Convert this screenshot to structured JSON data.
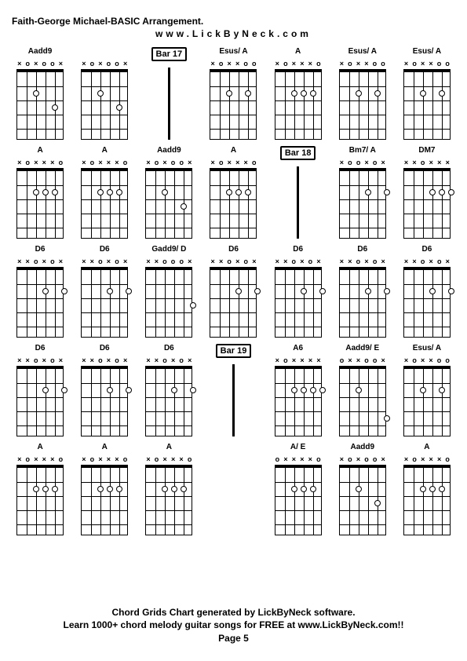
{
  "header": {
    "title": "Faith-George Michael-BASIC Arrangement.",
    "url": "www.LickByNeck.com"
  },
  "footer": {
    "line1": "Chord Grids Chart generated by LickByNeck software.",
    "line2": "Learn 1000+ chord melody guitar songs for FREE at www.LickByNeck.com!!",
    "page": "Page 5"
  },
  "colors": {
    "background": "#ffffff",
    "line": "#000000",
    "text": "#000000"
  },
  "dimensions": {
    "fretboard_width": 60,
    "fretboard_height": 90,
    "frets": 5,
    "strings": 6
  },
  "cells": [
    {
      "type": "chord",
      "label": "Aadd9",
      "markers": [
        "×",
        "o",
        "×",
        "o",
        "o",
        "×"
      ],
      "dots": [
        [
          2,
          1
        ],
        [
          3,
          3
        ]
      ]
    },
    {
      "type": "chord",
      "label": "",
      "markers": [
        "×",
        "o",
        "×",
        "o",
        "o",
        "×"
      ],
      "dots": [
        [
          2,
          1
        ],
        [
          3,
          3
        ]
      ]
    },
    {
      "type": "bar",
      "label": "Bar 17"
    },
    {
      "type": "chord",
      "label": "Esus/ A",
      "markers": [
        "×",
        "o",
        "×",
        "×",
        "o",
        "o"
      ],
      "dots": [
        [
          2,
          1
        ],
        [
          2,
          3
        ]
      ]
    },
    {
      "type": "chord",
      "label": "A",
      "markers": [
        "×",
        "o",
        "×",
        "×",
        "×",
        "o"
      ],
      "dots": [
        [
          2,
          1
        ],
        [
          2,
          2
        ],
        [
          2,
          3
        ]
      ]
    },
    {
      "type": "chord",
      "label": "Esus/ A",
      "markers": [
        "×",
        "o",
        "×",
        "×",
        "o",
        "o"
      ],
      "dots": [
        [
          2,
          1
        ],
        [
          2,
          3
        ]
      ]
    },
    {
      "type": "chord",
      "label": "Esus/ A",
      "markers": [
        "×",
        "o",
        "×",
        "×",
        "o",
        "o"
      ],
      "dots": [
        [
          2,
          1
        ],
        [
          2,
          3
        ]
      ]
    },
    {
      "type": "chord",
      "label": "A",
      "markers": [
        "×",
        "o",
        "×",
        "×",
        "×",
        "o"
      ],
      "dots": [
        [
          2,
          1
        ],
        [
          2,
          2
        ],
        [
          2,
          3
        ]
      ]
    },
    {
      "type": "chord",
      "label": "A",
      "markers": [
        "×",
        "o",
        "×",
        "×",
        "×",
        "o"
      ],
      "dots": [
        [
          2,
          1
        ],
        [
          2,
          2
        ],
        [
          2,
          3
        ]
      ]
    },
    {
      "type": "chord",
      "label": "Aadd9",
      "markers": [
        "×",
        "o",
        "×",
        "o",
        "o",
        "×"
      ],
      "dots": [
        [
          2,
          1
        ],
        [
          3,
          3
        ]
      ]
    },
    {
      "type": "chord",
      "label": "A",
      "markers": [
        "×",
        "o",
        "×",
        "×",
        "×",
        "o"
      ],
      "dots": [
        [
          2,
          1
        ],
        [
          2,
          2
        ],
        [
          2,
          3
        ]
      ]
    },
    {
      "type": "bar",
      "label": "Bar 18"
    },
    {
      "type": "chord",
      "label": "Bm7/ A",
      "markers": [
        "×",
        "o",
        "o",
        "×",
        "o",
        "×"
      ],
      "dots": [
        [
          2,
          2
        ],
        [
          2,
          4
        ]
      ]
    },
    {
      "type": "chord",
      "label": "DM7",
      "markers": [
        "×",
        "×",
        "o",
        "×",
        "×",
        "×"
      ],
      "dots": [
        [
          2,
          2
        ],
        [
          2,
          3
        ],
        [
          2,
          4
        ]
      ]
    },
    {
      "type": "chord",
      "label": "D6",
      "markers": [
        "×",
        "×",
        "o",
        "×",
        "o",
        "×"
      ],
      "dots": [
        [
          2,
          2
        ],
        [
          2,
          4
        ]
      ]
    },
    {
      "type": "chord",
      "label": "D6",
      "markers": [
        "×",
        "×",
        "o",
        "×",
        "o",
        "×"
      ],
      "dots": [
        [
          2,
          2
        ],
        [
          2,
          4
        ]
      ]
    },
    {
      "type": "chord",
      "label": "Gadd9/ D",
      "markers": [
        "×",
        "×",
        "o",
        "o",
        "o",
        "×"
      ],
      "dots": [
        [
          3,
          4
        ]
      ]
    },
    {
      "type": "chord",
      "label": "D6",
      "markers": [
        "×",
        "×",
        "o",
        "×",
        "o",
        "×"
      ],
      "dots": [
        [
          2,
          2
        ],
        [
          2,
          4
        ]
      ]
    },
    {
      "type": "chord",
      "label": "D6",
      "markers": [
        "×",
        "×",
        "o",
        "×",
        "o",
        "×"
      ],
      "dots": [
        [
          2,
          2
        ],
        [
          2,
          4
        ]
      ]
    },
    {
      "type": "chord",
      "label": "D6",
      "markers": [
        "×",
        "×",
        "o",
        "×",
        "o",
        "×"
      ],
      "dots": [
        [
          2,
          2
        ],
        [
          2,
          4
        ]
      ]
    },
    {
      "type": "chord",
      "label": "D6",
      "markers": [
        "×",
        "×",
        "o",
        "×",
        "o",
        "×"
      ],
      "dots": [
        [
          2,
          2
        ],
        [
          2,
          4
        ]
      ]
    },
    {
      "type": "chord",
      "label": "D6",
      "markers": [
        "×",
        "×",
        "o",
        "×",
        "o",
        "×"
      ],
      "dots": [
        [
          2,
          2
        ],
        [
          2,
          4
        ]
      ]
    },
    {
      "type": "chord",
      "label": "D6",
      "markers": [
        "×",
        "×",
        "o",
        "×",
        "o",
        "×"
      ],
      "dots": [
        [
          2,
          2
        ],
        [
          2,
          4
        ]
      ]
    },
    {
      "type": "chord",
      "label": "D6",
      "markers": [
        "×",
        "×",
        "o",
        "×",
        "o",
        "×"
      ],
      "dots": [
        [
          2,
          2
        ],
        [
          2,
          4
        ]
      ]
    },
    {
      "type": "bar",
      "label": "Bar 19"
    },
    {
      "type": "chord",
      "label": "A6",
      "markers": [
        "×",
        "o",
        "×",
        "×",
        "×",
        "×"
      ],
      "dots": [
        [
          2,
          1
        ],
        [
          2,
          2
        ],
        [
          2,
          3
        ],
        [
          2,
          4
        ]
      ]
    },
    {
      "type": "chord",
      "label": "Aadd9/ E",
      "markers": [
        "o",
        "×",
        "×",
        "o",
        "o",
        "×"
      ],
      "dots": [
        [
          2,
          1
        ],
        [
          4,
          4
        ]
      ]
    },
    {
      "type": "chord",
      "label": "Esus/ A",
      "markers": [
        "×",
        "o",
        "×",
        "×",
        "o",
        "o"
      ],
      "dots": [
        [
          2,
          1
        ],
        [
          2,
          3
        ]
      ]
    },
    {
      "type": "chord",
      "label": "A",
      "markers": [
        "×",
        "o",
        "×",
        "×",
        "×",
        "o"
      ],
      "dots": [
        [
          2,
          1
        ],
        [
          2,
          2
        ],
        [
          2,
          3
        ]
      ]
    },
    {
      "type": "chord",
      "label": "A",
      "markers": [
        "×",
        "o",
        "×",
        "×",
        "×",
        "o"
      ],
      "dots": [
        [
          2,
          1
        ],
        [
          2,
          2
        ],
        [
          2,
          3
        ]
      ]
    },
    {
      "type": "chord",
      "label": "A",
      "markers": [
        "×",
        "o",
        "×",
        "×",
        "×",
        "o"
      ],
      "dots": [
        [
          2,
          1
        ],
        [
          2,
          2
        ],
        [
          2,
          3
        ]
      ]
    },
    {
      "type": "blank",
      "label": ""
    },
    {
      "type": "chord",
      "label": "A/ E",
      "markers": [
        "o",
        "×",
        "×",
        "×",
        "×",
        "o"
      ],
      "dots": [
        [
          2,
          1
        ],
        [
          2,
          2
        ],
        [
          2,
          3
        ]
      ]
    },
    {
      "type": "chord",
      "label": "Aadd9",
      "markers": [
        "×",
        "o",
        "×",
        "o",
        "o",
        "×"
      ],
      "dots": [
        [
          2,
          1
        ],
        [
          3,
          3
        ]
      ]
    },
    {
      "type": "chord",
      "label": "A",
      "markers": [
        "×",
        "o",
        "×",
        "×",
        "×",
        "o"
      ],
      "dots": [
        [
          2,
          1
        ],
        [
          2,
          2
        ],
        [
          2,
          3
        ]
      ]
    }
  ]
}
